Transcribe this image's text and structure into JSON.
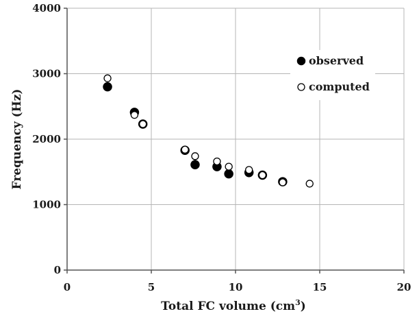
{
  "chart_data": {
    "type": "scatter",
    "xlabel": "Total FC volume (cm",
    "xlabel_superscript": "3",
    "xlabel_suffix": ")",
    "ylabel": "Frequency (Hz)",
    "xlim": [
      0,
      20
    ],
    "ylim": [
      0,
      4000
    ],
    "x_ticks": [
      0,
      5,
      10,
      15,
      20
    ],
    "y_ticks": [
      0,
      1000,
      2000,
      3000,
      4000
    ],
    "grid": true,
    "legend_position": "top-right",
    "series": [
      {
        "name": "observed",
        "marker": "filled-circle",
        "color": "#000000",
        "points": [
          {
            "x": 2.4,
            "y": 2800
          },
          {
            "x": 4.0,
            "y": 2410
          },
          {
            "x": 4.5,
            "y": 2230
          },
          {
            "x": 7.0,
            "y": 1830
          },
          {
            "x": 7.6,
            "y": 1610
          },
          {
            "x": 8.9,
            "y": 1580
          },
          {
            "x": 9.6,
            "y": 1470
          },
          {
            "x": 10.8,
            "y": 1490
          },
          {
            "x": 11.6,
            "y": 1450
          },
          {
            "x": 12.8,
            "y": 1350
          }
        ]
      },
      {
        "name": "computed",
        "marker": "open-circle",
        "color": "#000000",
        "points": [
          {
            "x": 2.4,
            "y": 2930
          },
          {
            "x": 4.0,
            "y": 2370
          },
          {
            "x": 4.5,
            "y": 2230
          },
          {
            "x": 7.0,
            "y": 1840
          },
          {
            "x": 7.6,
            "y": 1740
          },
          {
            "x": 8.9,
            "y": 1660
          },
          {
            "x": 9.6,
            "y": 1580
          },
          {
            "x": 10.8,
            "y": 1530
          },
          {
            "x": 11.6,
            "y": 1450
          },
          {
            "x": 12.8,
            "y": 1340
          },
          {
            "x": 14.4,
            "y": 1320
          }
        ]
      }
    ]
  }
}
